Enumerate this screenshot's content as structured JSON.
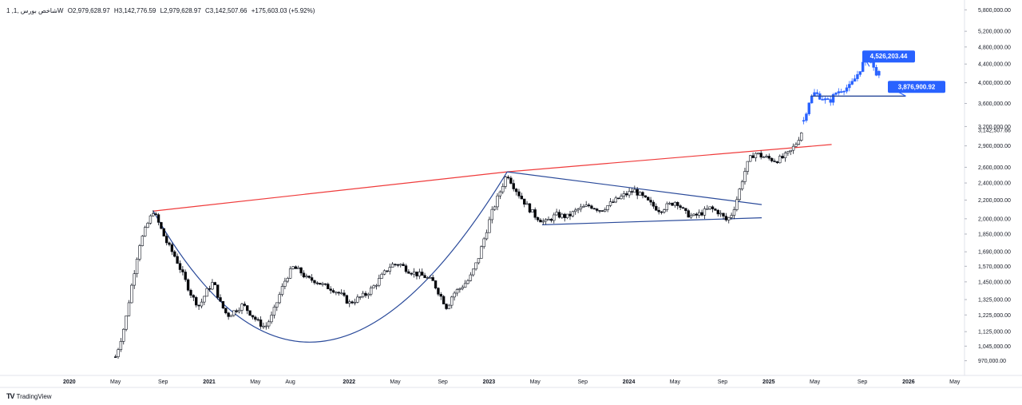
{
  "legend": {
    "symbol": "1 ,شاخص بورس ,1W",
    "open": "O2,979,628.97",
    "high": "H3,142,776.59",
    "low": "L2,979,628.97",
    "close": "C3,142,507.66",
    "change": "+175,603.03 (+5.92%)"
  },
  "brand": {
    "logo": "TV",
    "name": "TradingView"
  },
  "chart_data": {
    "type": "candlestick",
    "title": "",
    "y_scale": "log",
    "y_ticks": [
      "5,800,000.00",
      "5,200,000.00",
      "4,800,000.00",
      "4,400,000.00",
      "4,000,000.00",
      "3,600,000.00",
      "3,200,000.00",
      "2,900,000.00",
      "2,600,000.00",
      "2,400,000.00",
      "2,200,000.00",
      "2,000,000.00",
      "1,850,000.00",
      "1,690,000.00",
      "1,570,000.00",
      "1,450,000.00",
      "1,325,000.00",
      "1,225,000.00",
      "1,125,000.00",
      "1,045,000.00",
      "970,000.00"
    ],
    "y_tick_values": [
      5800000,
      5200000,
      4800000,
      4400000,
      4000000,
      3600000,
      3200000,
      2900000,
      2600000,
      2400000,
      2200000,
      2000000,
      1850000,
      1690000,
      1570000,
      1450000,
      1325000,
      1225000,
      1125000,
      1045000,
      970000
    ],
    "x_ticks": [
      {
        "label": "2020",
        "t": 2020.0,
        "bold": true
      },
      {
        "label": "May",
        "t": 2020.33,
        "bold": false
      },
      {
        "label": "Sep",
        "t": 2020.67,
        "bold": false
      },
      {
        "label": "2021",
        "t": 2021.0,
        "bold": true
      },
      {
        "label": "May",
        "t": 2021.33,
        "bold": false
      },
      {
        "label": "Aug",
        "t": 2021.58,
        "bold": false
      },
      {
        "label": "2022",
        "t": 2022.0,
        "bold": true
      },
      {
        "label": "May",
        "t": 2022.33,
        "bold": false
      },
      {
        "label": "Sep",
        "t": 2022.67,
        "bold": false
      },
      {
        "label": "2023",
        "t": 2023.0,
        "bold": true
      },
      {
        "label": "May",
        "t": 2023.33,
        "bold": false
      },
      {
        "label": "Sep",
        "t": 2023.67,
        "bold": false
      },
      {
        "label": "2024",
        "t": 2024.0,
        "bold": true
      },
      {
        "label": "May",
        "t": 2024.33,
        "bold": false
      },
      {
        "label": "Sep",
        "t": 2024.67,
        "bold": false
      },
      {
        "label": "2025",
        "t": 2025.0,
        "bold": true
      },
      {
        "label": "May",
        "t": 2025.33,
        "bold": false
      },
      {
        "label": "Sep",
        "t": 2025.67,
        "bold": false
      },
      {
        "label": "2026",
        "t": 2026.0,
        "bold": true
      },
      {
        "label": "May",
        "t": 2026.33,
        "bold": false
      }
    ],
    "price_path": [
      [
        2020.33,
        990000
      ],
      [
        2020.36,
        1060000
      ],
      [
        2020.4,
        1180000
      ],
      [
        2020.45,
        1450000
      ],
      [
        2020.5,
        1750000
      ],
      [
        2020.56,
        1950000
      ],
      [
        2020.6,
        2080000
      ],
      [
        2020.64,
        1950000
      ],
      [
        2020.7,
        1760000
      ],
      [
        2020.76,
        1640000
      ],
      [
        2020.82,
        1480000
      ],
      [
        2020.88,
        1340000
      ],
      [
        2020.93,
        1280000
      ],
      [
        2020.98,
        1380000
      ],
      [
        2021.03,
        1450000
      ],
      [
        2021.08,
        1300000
      ],
      [
        2021.13,
        1220000
      ],
      [
        2021.18,
        1250000
      ],
      [
        2021.24,
        1290000
      ],
      [
        2021.29,
        1240000
      ],
      [
        2021.35,
        1180000
      ],
      [
        2021.4,
        1150000
      ],
      [
        2021.45,
        1220000
      ],
      [
        2021.5,
        1350000
      ],
      [
        2021.55,
        1480000
      ],
      [
        2021.6,
        1560000
      ],
      [
        2021.65,
        1530000
      ],
      [
        2021.7,
        1470000
      ],
      [
        2021.76,
        1460000
      ],
      [
        2021.82,
        1420000
      ],
      [
        2021.88,
        1400000
      ],
      [
        2021.94,
        1360000
      ],
      [
        2022.0,
        1300000
      ],
      [
        2022.06,
        1330000
      ],
      [
        2022.12,
        1360000
      ],
      [
        2022.18,
        1420000
      ],
      [
        2022.24,
        1500000
      ],
      [
        2022.3,
        1580000
      ],
      [
        2022.36,
        1590000
      ],
      [
        2022.42,
        1540000
      ],
      [
        2022.48,
        1510000
      ],
      [
        2022.54,
        1490000
      ],
      [
        2022.6,
        1450000
      ],
      [
        2022.66,
        1340000
      ],
      [
        2022.7,
        1270000
      ],
      [
        2022.74,
        1360000
      ],
      [
        2022.8,
        1410000
      ],
      [
        2022.86,
        1470000
      ],
      [
        2022.92,
        1620000
      ],
      [
        2022.97,
        1830000
      ],
      [
        2023.02,
        2060000
      ],
      [
        2023.08,
        2300000
      ],
      [
        2023.13,
        2520000
      ],
      [
        2023.17,
        2380000
      ],
      [
        2023.22,
        2250000
      ],
      [
        2023.28,
        2120000
      ],
      [
        2023.33,
        2030000
      ],
      [
        2023.4,
        1960000
      ],
      [
        2023.48,
        2040000
      ],
      [
        2023.56,
        2020000
      ],
      [
        2023.64,
        2100000
      ],
      [
        2023.72,
        2140000
      ],
      [
        2023.8,
        2090000
      ],
      [
        2023.88,
        2170000
      ],
      [
        2023.96,
        2250000
      ],
      [
        2024.04,
        2310000
      ],
      [
        2024.1,
        2230000
      ],
      [
        2024.16,
        2150000
      ],
      [
        2024.22,
        2090000
      ],
      [
        2024.28,
        2140000
      ],
      [
        2024.34,
        2190000
      ],
      [
        2024.4,
        2060000
      ],
      [
        2024.46,
        2020000
      ],
      [
        2024.52,
        2060000
      ],
      [
        2024.58,
        2110000
      ],
      [
        2024.64,
        2070000
      ],
      [
        2024.7,
        1980000
      ],
      [
        2024.74,
        2060000
      ],
      [
        2024.78,
        2250000
      ],
      [
        2024.82,
        2500000
      ],
      [
        2024.86,
        2700000
      ],
      [
        2024.9,
        2800000
      ],
      [
        2024.95,
        2750000
      ],
      [
        2025.0,
        2720000
      ],
      [
        2025.05,
        2690000
      ],
      [
        2025.1,
        2730000
      ],
      [
        2025.15,
        2800000
      ],
      [
        2025.2,
        2950000
      ],
      [
        2025.24,
        3142507
      ]
    ],
    "projection_path": [
      [
        2025.25,
        3300000
      ],
      [
        2025.29,
        3650000
      ],
      [
        2025.33,
        3800000
      ],
      [
        2025.38,
        3700000
      ],
      [
        2025.43,
        3620000
      ],
      [
        2025.48,
        3800000
      ],
      [
        2025.53,
        3880000
      ],
      [
        2025.58,
        3920000
      ],
      [
        2025.63,
        4150000
      ],
      [
        2025.68,
        4450000
      ],
      [
        2025.72,
        4526203
      ],
      [
        2025.76,
        4230000
      ],
      [
        2025.8,
        4160000
      ]
    ],
    "annotations": [
      {
        "label": "4,526,203.44",
        "value": 4526203.44,
        "type": "target-high"
      },
      {
        "label": "3,876,900.92",
        "value": 3876900.92,
        "type": "support"
      },
      {
        "label": "3,142,507.66",
        "value": 3142507.66,
        "type": "last-price"
      }
    ],
    "trendlines": [
      {
        "name": "resistance-red",
        "points": [
          [
            2020.6,
            2080000
          ],
          [
            2023.13,
            2540000
          ],
          [
            2025.45,
            2920000
          ]
        ],
        "color": "#ef3b3b"
      },
      {
        "name": "triangle-top",
        "points": [
          [
            2023.13,
            2540000
          ],
          [
            2024.95,
            2150000
          ]
        ],
        "color": "#2a4a9a"
      },
      {
        "name": "triangle-bottom",
        "points": [
          [
            2023.38,
            1940000
          ],
          [
            2024.95,
            2010000
          ]
        ],
        "color": "#2a4a9a"
      },
      {
        "name": "cup-curve",
        "points": [
          [
            2020.6,
            2080000
          ],
          [
            2021.8,
            1070000
          ],
          [
            2023.13,
            2540000
          ]
        ],
        "color": "#2a4a9a"
      }
    ],
    "colors": {
      "bull": "#ffffff",
      "bear": "#000000",
      "wick": "#131722",
      "projection": "#2962ff",
      "red_line": "#ef3b3b",
      "blue_line": "#2a4a9a",
      "callout_bg": "#2962ff"
    }
  }
}
